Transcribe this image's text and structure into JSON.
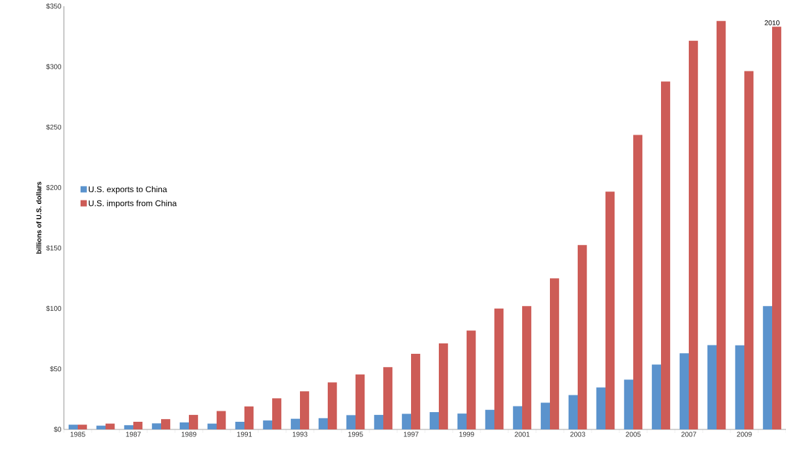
{
  "chart_data": {
    "type": "bar",
    "ylabel": "billions of U.S. dollars",
    "categories": [
      "1985",
      null,
      "1987",
      null,
      "1989",
      null,
      "1991",
      null,
      "1993",
      null,
      "1995",
      null,
      "1997",
      null,
      "1999",
      null,
      "2001",
      null,
      "2003",
      null,
      "2005",
      null,
      "2007",
      null,
      "2009",
      null
    ],
    "series": [
      {
        "name": "U.S. exports to China",
        "color": "#5b93cd",
        "values": [
          3.9,
          3.1,
          3.5,
          5.0,
          5.8,
          4.8,
          6.3,
          7.4,
          8.8,
          9.3,
          11.8,
          12,
          12.9,
          14.3,
          13.1,
          16.2,
          19.2,
          22.1,
          28.4,
          34.7,
          41.2,
          53.7,
          62.9,
          69.7,
          69.5,
          102
        ]
      },
      {
        "name": "U.S. imports from China",
        "color": "#cd5c57",
        "values": [
          3.9,
          4.8,
          6.3,
          8.5,
          12,
          15.2,
          19,
          25.7,
          31.5,
          38.8,
          45.5,
          51.5,
          62.6,
          71.2,
          81.8,
          100,
          102,
          125,
          152.4,
          196.7,
          243.5,
          287.8,
          321.4,
          337.8,
          296.4,
          333
        ]
      }
    ],
    "ylim": [
      0,
      350
    ],
    "yticks": [
      {
        "value": 0,
        "label": "$0"
      },
      {
        "value": 50,
        "label": "$50"
      },
      {
        "value": 100,
        "label": "$100"
      },
      {
        "value": 150,
        "label": "$150"
      },
      {
        "value": 200,
        "label": "$200"
      },
      {
        "value": 250,
        "label": "$250"
      },
      {
        "value": 300,
        "label": "$300"
      },
      {
        "value": 350,
        "label": "$350"
      }
    ],
    "annotations": [
      {
        "text": "2010",
        "y": 333
      }
    ],
    "legend": "left"
  }
}
